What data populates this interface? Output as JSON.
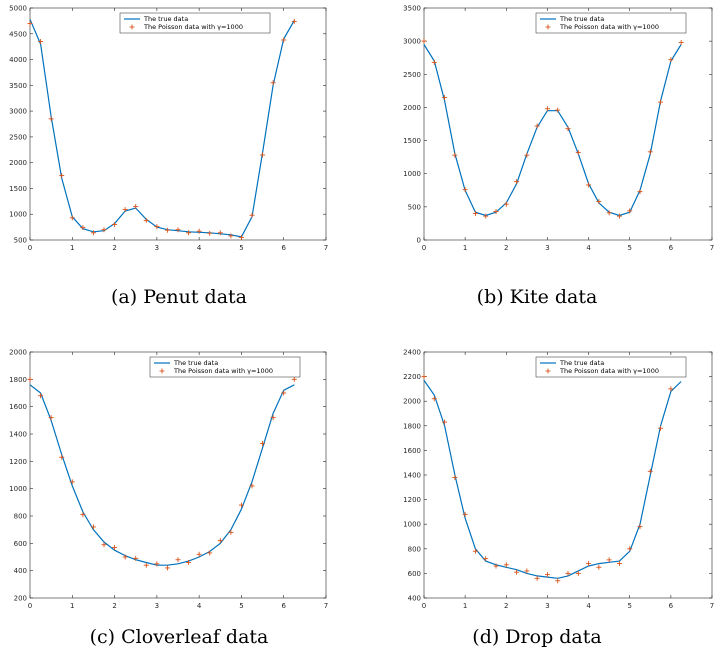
{
  "colors": {
    "true_line": "#0072BD",
    "poisson_marker": "#D95319",
    "axis": "#262626"
  },
  "captions": [
    "(a) Penut data",
    "(b) Kite data",
    "(c) Cloverleaf data",
    "(d) Drop data"
  ],
  "legend": {
    "line_label": "The true data",
    "marker_label": "The Poisson data with  γ=1000"
  },
  "chart_data": [
    {
      "type": "line",
      "caption": "(a) Penut data",
      "xlim": [
        0,
        7
      ],
      "ylim": [
        500,
        5000
      ],
      "xticks": [
        0,
        1,
        2,
        3,
        4,
        5,
        6,
        7
      ],
      "yticks": [
        500,
        1000,
        1500,
        2000,
        2500,
        3000,
        3500,
        4000,
        4500,
        5000
      ],
      "grid": false,
      "legend_position": "top-right",
      "x": [
        0,
        0.25,
        0.5,
        0.75,
        1,
        1.25,
        1.5,
        1.75,
        2,
        2.25,
        2.5,
        2.75,
        3,
        3.25,
        3.5,
        3.75,
        4,
        4.25,
        4.5,
        4.75,
        5,
        5.25,
        5.5,
        5.75,
        6,
        6.25
      ],
      "series": [
        {
          "name": "The true data",
          "style": "line",
          "values": [
            4780,
            4300,
            2900,
            1700,
            950,
            720,
            660,
            680,
            820,
            1060,
            1120,
            900,
            750,
            700,
            680,
            660,
            650,
            640,
            620,
            600,
            560,
            950,
            2200,
            3500,
            4400,
            4760
          ]
        },
        {
          "name": "The Poisson data with  γ=1000",
          "style": "marker",
          "values": [
            4700,
            4350,
            2850,
            1750,
            930,
            740,
            640,
            700,
            800,
            1090,
            1150,
            880,
            760,
            690,
            700,
            640,
            670,
            630,
            640,
            580,
            550,
            980,
            2150,
            3550,
            4380,
            4740
          ]
        }
      ]
    },
    {
      "type": "line",
      "caption": "(b) Kite data",
      "xlim": [
        0,
        7
      ],
      "ylim": [
        0,
        3500
      ],
      "xticks": [
        0,
        1,
        2,
        3,
        4,
        5,
        6,
        7
      ],
      "yticks": [
        0,
        500,
        1000,
        1500,
        2000,
        2500,
        3000,
        3500
      ],
      "grid": false,
      "legend_position": "top-right",
      "x": [
        0,
        0.25,
        0.5,
        0.75,
        1,
        1.25,
        1.5,
        1.75,
        2,
        2.25,
        2.5,
        2.75,
        3,
        3.25,
        3.5,
        3.75,
        4,
        4.25,
        4.5,
        4.75,
        5,
        5.25,
        5.5,
        5.75,
        6,
        6.25
      ],
      "series": [
        {
          "name": "The true data",
          "style": "line",
          "values": [
            2950,
            2700,
            2100,
            1300,
            750,
            420,
            370,
            420,
            560,
            850,
            1300,
            1700,
            1950,
            1950,
            1700,
            1300,
            850,
            560,
            420,
            370,
            420,
            750,
            1300,
            2100,
            2700,
            2950
          ]
        },
        {
          "name": "The Poisson data with  γ=1000",
          "style": "marker",
          "values": [
            3000,
            2680,
            2150,
            1280,
            760,
            400,
            360,
            430,
            540,
            880,
            1280,
            1720,
            1980,
            1960,
            1680,
            1320,
            830,
            580,
            410,
            360,
            440,
            730,
            1330,
            2080,
            2720,
            2980
          ]
        }
      ]
    },
    {
      "type": "line",
      "caption": "(c) Cloverleaf data",
      "xlim": [
        0,
        7
      ],
      "ylim": [
        200,
        2000
      ],
      "xticks": [
        0,
        1,
        2,
        3,
        4,
        5,
        6,
        7
      ],
      "yticks": [
        200,
        400,
        600,
        800,
        1000,
        1200,
        1400,
        1600,
        1800,
        2000
      ],
      "grid": false,
      "legend_position": "top-right",
      "x": [
        0,
        0.25,
        0.5,
        0.75,
        1,
        1.25,
        1.5,
        1.75,
        2,
        2.25,
        2.5,
        2.75,
        3,
        3.25,
        3.5,
        3.75,
        4,
        4.25,
        4.5,
        4.75,
        5,
        5.25,
        5.5,
        5.75,
        6,
        6.25
      ],
      "series": [
        {
          "name": "The true data",
          "style": "line",
          "values": [
            1760,
            1700,
            1500,
            1250,
            1020,
            830,
            700,
            610,
            550,
            510,
            480,
            460,
            440,
            440,
            450,
            470,
            500,
            540,
            600,
            700,
            850,
            1050,
            1300,
            1550,
            1720,
            1760
          ]
        },
        {
          "name": "The Poisson data with  γ=1000",
          "style": "marker",
          "values": [
            1800,
            1680,
            1520,
            1230,
            1050,
            810,
            720,
            590,
            570,
            500,
            490,
            440,
            450,
            420,
            480,
            460,
            520,
            530,
            620,
            680,
            880,
            1020,
            1330,
            1520,
            1700,
            1800
          ]
        }
      ]
    },
    {
      "type": "line",
      "caption": "(d) Drop data",
      "xlim": [
        0,
        7
      ],
      "ylim": [
        400,
        2400
      ],
      "xticks": [
        0,
        1,
        2,
        3,
        4,
        5,
        6,
        7
      ],
      "yticks": [
        400,
        600,
        800,
        1000,
        1200,
        1400,
        1600,
        1800,
        2000,
        2200,
        2400
      ],
      "grid": false,
      "legend_position": "top-right",
      "x": [
        0,
        0.25,
        0.5,
        0.75,
        1,
        1.25,
        1.5,
        1.75,
        2,
        2.25,
        2.5,
        2.75,
        3,
        3.25,
        3.5,
        3.75,
        4,
        4.25,
        4.5,
        4.75,
        5,
        5.25,
        5.5,
        5.75,
        6,
        6.25
      ],
      "series": [
        {
          "name": "The true data",
          "style": "line",
          "values": [
            2170,
            2050,
            1800,
            1400,
            1050,
            800,
            700,
            670,
            650,
            630,
            600,
            580,
            570,
            560,
            580,
            620,
            660,
            680,
            690,
            700,
            780,
            1000,
            1400,
            1800,
            2080,
            2160
          ]
        },
        {
          "name": "The Poisson data with  γ=1000",
          "style": "marker",
          "values": [
            2200,
            2020,
            1830,
            1380,
            1080,
            780,
            720,
            660,
            670,
            610,
            620,
            560,
            590,
            540,
            600,
            600,
            680,
            650,
            710,
            680,
            800,
            980,
            1430,
            1780,
            2100,
            2240
          ]
        }
      ]
    }
  ]
}
